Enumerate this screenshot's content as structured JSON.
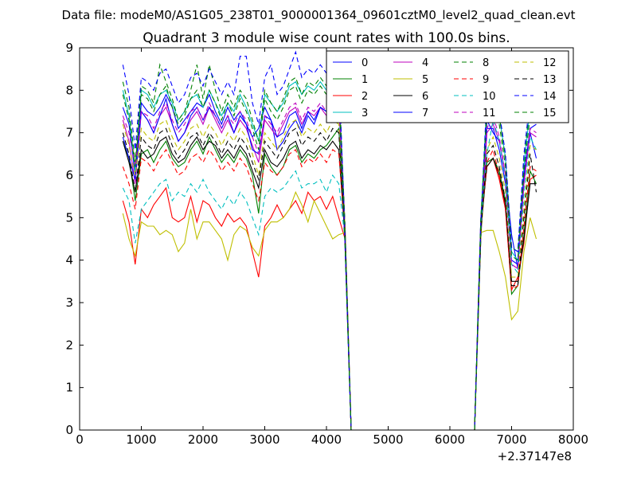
{
  "chart_data": {
    "type": "line",
    "suptitle": "Data file: modeM0/AS1G05_238T01_9000001364_09601cztM0_level2_quad_clean.evt",
    "title": "Quadrant 3 module wise count rates with 100.0s bins.",
    "xlabel": "",
    "ylabel": "",
    "x_offset_label": "+2.37147e8",
    "xlim": [
      0,
      8000
    ],
    "ylim": [
      0,
      9
    ],
    "x_ticks": [
      0,
      1000,
      2000,
      3000,
      4000,
      5000,
      6000,
      7000,
      8000
    ],
    "y_ticks": [
      0,
      1,
      2,
      3,
      4,
      5,
      6,
      7,
      8,
      9
    ],
    "grid": false,
    "legend": {
      "placement": "top-right",
      "columns": 4
    },
    "segments": [
      {
        "x_start": 700,
        "x_end": 4200,
        "step": 100
      },
      {
        "x_start": 6600,
        "x_end": 7400,
        "step": 100
      }
    ],
    "gap": {
      "x": [
        4300,
        4400,
        6400,
        6500
      ],
      "y": [
        4.8,
        0,
        0,
        4.5
      ]
    },
    "series": [
      {
        "name": "0",
        "color": "#0000ff",
        "dash": "solid",
        "seg1": [
          7.6,
          7.2,
          6.0,
          7.7,
          7.5,
          7.4,
          7.6,
          7.9,
          7.6,
          7.1,
          7.3,
          7.5,
          7.7,
          7.6,
          7.9,
          7.5,
          7.2,
          7.6,
          7.3,
          7.5,
          7.2,
          6.9,
          7.1,
          7.6,
          7.3,
          6.6,
          6.8,
          7.1,
          7.3,
          7.0,
          7.4,
          7.2,
          7.6,
          7.5,
          7.8,
          8.1
        ],
        "seg2": [
          7.3,
          7.0,
          6.8,
          6.0,
          4.6,
          3.8,
          5.9,
          7.0,
          6.4
        ]
      },
      {
        "name": "1",
        "color": "#008000",
        "dash": "solid",
        "seg1": [
          6.8,
          6.4,
          5.4,
          6.5,
          6.6,
          6.3,
          6.6,
          6.8,
          6.4,
          6.2,
          6.3,
          6.6,
          6.8,
          6.5,
          6.9,
          6.6,
          6.3,
          6.5,
          6.3,
          6.6,
          6.4,
          6.0,
          5.1,
          6.5,
          6.2,
          6.0,
          6.2,
          6.6,
          6.7,
          6.3,
          6.5,
          6.4,
          6.6,
          6.7,
          6.9,
          7.1
        ],
        "seg2": [
          6.3,
          6.4,
          6.1,
          5.4,
          3.2,
          3.4,
          4.6,
          6.1,
          5.8
        ]
      },
      {
        "name": "2",
        "color": "#ff0000",
        "dash": "solid",
        "seg1": [
          5.4,
          4.9,
          3.9,
          5.2,
          5.0,
          5.3,
          5.5,
          5.7,
          5.0,
          4.9,
          5.0,
          5.5,
          4.9,
          5.4,
          5.3,
          5.0,
          4.8,
          5.1,
          4.9,
          5.0,
          4.8,
          4.2,
          3.6,
          4.8,
          5.0,
          5.3,
          5.0,
          5.2,
          5.4,
          5.1,
          5.6,
          5.4,
          5.5,
          5.2,
          5.5,
          5.0
        ],
        "seg2": [
          6.2,
          6.4,
          5.9,
          5.2,
          3.3,
          3.6,
          4.4,
          5.9,
          6.0
        ]
      },
      {
        "name": "3",
        "color": "#00bfbf",
        "dash": "solid",
        "seg1": [
          8.0,
          7.4,
          6.1,
          8.0,
          7.9,
          7.6,
          7.9,
          8.0,
          7.7,
          7.3,
          7.5,
          7.8,
          7.9,
          7.6,
          8.0,
          7.7,
          7.4,
          7.7,
          7.5,
          7.9,
          7.6,
          7.2,
          6.8,
          7.9,
          7.7,
          7.5,
          7.7,
          8.1,
          8.2,
          7.9,
          8.1,
          8.0,
          8.2,
          8.0,
          8.3,
          8.2
        ],
        "seg2": [
          7.7,
          8.0,
          7.4,
          6.4,
          4.2,
          4.0,
          6.2,
          7.6,
          7.8
        ]
      },
      {
        "name": "4",
        "color": "#bf00bf",
        "dash": "solid",
        "seg1": [
          7.3,
          6.8,
          5.8,
          7.5,
          7.3,
          7.0,
          7.4,
          7.6,
          7.2,
          6.8,
          7.0,
          7.3,
          7.5,
          7.2,
          7.6,
          7.3,
          7.0,
          7.3,
          7.0,
          7.3,
          7.1,
          6.7,
          6.3,
          7.3,
          7.1,
          6.9,
          7.2,
          7.5,
          7.6,
          7.2,
          7.5,
          7.4,
          7.6,
          7.4,
          7.7,
          7.9
        ],
        "seg2": [
          7.0,
          7.2,
          6.8,
          6.0,
          3.9,
          3.8,
          5.8,
          7.0,
          6.9
        ]
      },
      {
        "name": "5",
        "color": "#bfbf00",
        "dash": "solid",
        "seg1": [
          5.1,
          4.5,
          4.1,
          4.9,
          4.8,
          4.8,
          4.6,
          4.7,
          4.6,
          4.2,
          4.4,
          5.2,
          4.5,
          4.9,
          4.9,
          4.7,
          4.5,
          4.0,
          4.6,
          4.8,
          4.7,
          4.3,
          4.1,
          4.7,
          4.9,
          4.9,
          5.0,
          5.2,
          5.6,
          5.3,
          4.9,
          5.4,
          5.1,
          4.8,
          4.5,
          4.6
        ],
        "seg2": [
          4.7,
          4.7,
          4.2,
          3.6,
          2.6,
          2.8,
          4.2,
          5.0,
          4.5
        ]
      },
      {
        "name": "6",
        "color": "#000000",
        "dash": "solid",
        "seg1": [
          6.8,
          6.3,
          5.6,
          6.6,
          6.4,
          6.5,
          6.8,
          6.9,
          6.5,
          6.3,
          6.4,
          6.7,
          6.9,
          6.6,
          6.8,
          6.7,
          6.4,
          6.6,
          6.4,
          6.7,
          6.5,
          6.1,
          5.7,
          6.6,
          6.3,
          6.2,
          6.4,
          6.7,
          6.8,
          6.4,
          6.6,
          6.5,
          6.7,
          6.6,
          6.8,
          6.6
        ],
        "seg2": [
          6.2,
          6.4,
          6.0,
          5.3,
          3.5,
          3.5,
          4.5,
          5.8,
          5.8
        ]
      },
      {
        "name": "7",
        "color": "#0000ff",
        "dash": "solid",
        "seg1": [
          6.9,
          6.4,
          5.9,
          7.5,
          7.3,
          7.0,
          7.4,
          7.8,
          7.2,
          6.8,
          7.0,
          7.4,
          7.6,
          7.3,
          7.6,
          7.4,
          7.1,
          7.4,
          7.0,
          7.4,
          7.2,
          6.6,
          6.5,
          7.4,
          7.3,
          6.9,
          7.0,
          7.4,
          7.5,
          7.1,
          7.5,
          7.3,
          7.6,
          7.5,
          7.7,
          7.8
        ],
        "seg2": [
          7.1,
          7.1,
          6.6,
          5.8,
          4.0,
          3.9,
          6.0,
          7.1,
          7.2
        ]
      },
      {
        "name": "8",
        "color": "#008000",
        "dash": "dashed",
        "seg1": [
          8.2,
          7.6,
          6.3,
          8.1,
          8.0,
          7.7,
          8.6,
          8.2,
          7.8,
          7.3,
          7.5,
          8.0,
          8.6,
          7.8,
          8.6,
          8.0,
          7.5,
          7.9,
          7.6,
          8.0,
          7.8,
          7.3,
          6.8,
          8.0,
          7.7,
          7.5,
          7.8,
          8.2,
          8.3,
          7.9,
          8.2,
          8.1,
          8.3,
          8.1,
          8.4,
          8.3
        ],
        "seg2": [
          7.8,
          8.0,
          7.4,
          6.4,
          4.3,
          4.2,
          6.4,
          7.7,
          7.7
        ]
      },
      {
        "name": "9",
        "color": "#ff0000",
        "dash": "dashed",
        "seg1": [
          6.2,
          5.8,
          5.2,
          6.4,
          6.3,
          6.1,
          6.4,
          6.6,
          6.3,
          6.0,
          6.1,
          6.4,
          6.5,
          6.3,
          6.6,
          6.4,
          6.1,
          6.3,
          6.1,
          6.4,
          6.2,
          5.8,
          5.4,
          6.3,
          6.1,
          6.0,
          6.2,
          6.5,
          6.6,
          6.2,
          6.4,
          6.3,
          6.5,
          6.3,
          6.6,
          6.5
        ],
        "seg2": [
          6.3,
          6.6,
          6.0,
          5.2,
          3.3,
          3.4,
          4.8,
          6.2,
          6.1
        ]
      },
      {
        "name": "10",
        "color": "#00bfbf",
        "dash": "dashed",
        "seg1": [
          5.7,
          5.4,
          4.4,
          5.2,
          5.4,
          5.6,
          5.8,
          5.9,
          5.4,
          5.6,
          5.5,
          5.8,
          5.6,
          5.9,
          5.6,
          5.4,
          5.2,
          5.5,
          5.3,
          5.6,
          5.4,
          5.0,
          4.6,
          5.5,
          5.7,
          5.6,
          5.7,
          5.9,
          6.1,
          5.7,
          5.8,
          5.8,
          5.9,
          5.6,
          6.0,
          5.8
        ],
        "seg2": [
          6.5,
          7.3,
          6.8,
          5.9,
          3.9,
          3.7,
          5.5,
          6.9,
          6.6
        ]
      },
      {
        "name": "11",
        "color": "#bf00bf",
        "dash": "dashed",
        "seg1": [
          7.4,
          7.0,
          6.2,
          7.5,
          7.4,
          7.1,
          7.5,
          7.7,
          7.3,
          7.0,
          7.2,
          7.5,
          7.6,
          7.3,
          7.7,
          7.4,
          7.1,
          7.4,
          7.2,
          7.5,
          7.3,
          6.9,
          6.5,
          7.4,
          7.2,
          7.0,
          7.3,
          7.6,
          7.7,
          7.3,
          7.6,
          7.5,
          7.7,
          7.5,
          7.8,
          7.7
        ],
        "seg2": [
          7.1,
          7.4,
          6.9,
          6.0,
          3.9,
          3.8,
          5.8,
          7.1,
          7.0
        ]
      },
      {
        "name": "12",
        "color": "#bfbf00",
        "dash": "dashed",
        "seg1": [
          7.2,
          6.7,
          6.0,
          7.1,
          6.9,
          6.8,
          7.2,
          7.3,
          6.9,
          6.6,
          6.8,
          7.1,
          7.2,
          6.9,
          7.2,
          7.0,
          6.7,
          7.0,
          6.8,
          7.1,
          6.9,
          6.5,
          6.0,
          7.0,
          6.8,
          6.6,
          6.9,
          7.2,
          7.3,
          6.9,
          7.1,
          7.0,
          7.2,
          7.0,
          7.3,
          7.2
        ],
        "seg2": [
          6.6,
          6.9,
          6.4,
          5.6,
          3.6,
          3.6,
          5.2,
          6.7,
          6.6
        ]
      },
      {
        "name": "13",
        "color": "#000000",
        "dash": "dashed",
        "seg1": [
          7.0,
          6.5,
          5.6,
          6.9,
          6.7,
          6.6,
          7.0,
          7.1,
          6.7,
          6.4,
          6.6,
          6.9,
          7.0,
          6.7,
          7.0,
          6.8,
          6.5,
          6.8,
          6.6,
          6.9,
          6.7,
          6.3,
          5.9,
          6.8,
          6.6,
          6.4,
          6.7,
          7.0,
          7.1,
          6.7,
          6.9,
          6.8,
          7.0,
          6.8,
          7.1,
          7.0
        ],
        "seg2": [
          6.5,
          6.7,
          6.2,
          5.4,
          3.4,
          3.4,
          5.0,
          6.5,
          5.6
        ]
      },
      {
        "name": "14",
        "color": "#0000ff",
        "dash": "dashed",
        "seg1": [
          8.6,
          7.9,
          6.6,
          8.3,
          8.2,
          8.0,
          8.4,
          8.5,
          8.1,
          7.7,
          7.9,
          8.3,
          8.4,
          8.1,
          8.5,
          8.2,
          7.9,
          8.2,
          7.9,
          8.8,
          8.8,
          7.7,
          7.2,
          8.3,
          8.6,
          7.9,
          8.1,
          8.5,
          8.9,
          8.3,
          8.5,
          8.4,
          8.6,
          8.4,
          8.7,
          8.6
        ],
        "seg2": [
          7.9,
          8.1,
          7.5,
          6.5,
          4.3,
          4.2,
          6.5,
          7.8,
          7.9
        ]
      },
      {
        "name": "15",
        "color": "#008000",
        "dash": "dashed",
        "seg1": [
          7.9,
          7.3,
          6.2,
          7.9,
          7.8,
          7.5,
          7.9,
          8.1,
          7.6,
          7.2,
          7.4,
          7.8,
          8.0,
          7.6,
          8.0,
          7.7,
          7.3,
          7.7,
          7.4,
          7.8,
          7.5,
          7.1,
          6.6,
          7.8,
          7.5,
          7.3,
          7.6,
          8.0,
          8.1,
          7.7,
          8.0,
          7.9,
          8.1,
          7.9,
          8.2,
          8.1
        ],
        "seg2": [
          7.5,
          7.8,
          7.2,
          6.2,
          4.1,
          4.0,
          6.1,
          7.4,
          7.5
        ]
      }
    ]
  }
}
